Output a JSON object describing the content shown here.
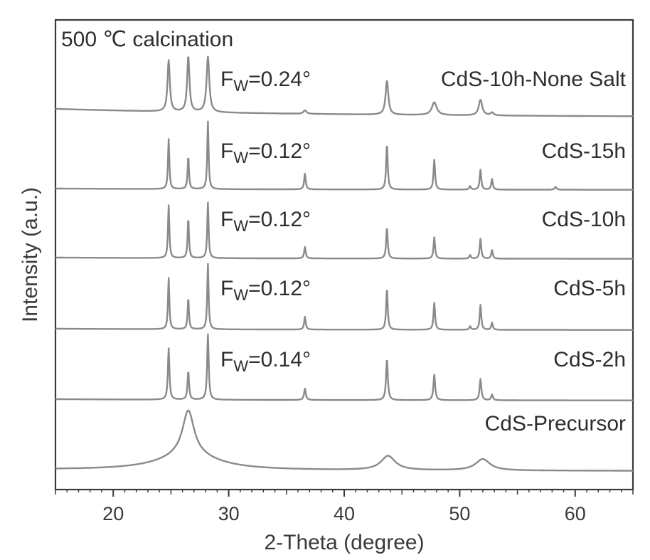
{
  "chart_data": {
    "type": "line",
    "title": "",
    "annotation": "500 ℃ calcination",
    "xlabel": "2-Theta (degree)",
    "ylabel": "Intensity (a.u.)",
    "xlim": [
      15,
      65
    ],
    "xticks": [
      20,
      30,
      40,
      50,
      60
    ],
    "yticks_shown": false,
    "series": [
      {
        "name": "CdS-10h-None Salt",
        "fw": "F_W=0.24°",
        "offset": 5,
        "baseline": 0.12,
        "peaks": [
          {
            "x": 24.8,
            "h": 0.72,
            "w": 0.12
          },
          {
            "x": 26.5,
            "h": 0.78,
            "w": 0.12
          },
          {
            "x": 28.2,
            "h": 0.78,
            "w": 0.14
          },
          {
            "x": 36.6,
            "h": 0.05,
            "w": 0.15
          },
          {
            "x": 43.7,
            "h": 0.48,
            "w": 0.14
          },
          {
            "x": 47.8,
            "h": 0.18,
            "w": 0.25
          },
          {
            "x": 51.8,
            "h": 0.22,
            "w": 0.18
          },
          {
            "x": 52.8,
            "h": 0.04,
            "w": 0.15
          }
        ]
      },
      {
        "name": "CdS-15h",
        "fw": "F_W=0.12°",
        "offset": 4,
        "baseline": 0.02,
        "peaks": [
          {
            "x": 24.8,
            "h": 0.7,
            "w": 0.07
          },
          {
            "x": 26.5,
            "h": 0.46,
            "w": 0.07
          },
          {
            "x": 28.2,
            "h": 0.95,
            "w": 0.07
          },
          {
            "x": 36.6,
            "h": 0.22,
            "w": 0.08
          },
          {
            "x": 43.7,
            "h": 0.64,
            "w": 0.08
          },
          {
            "x": 47.8,
            "h": 0.42,
            "w": 0.08
          },
          {
            "x": 50.9,
            "h": 0.05,
            "w": 0.08
          },
          {
            "x": 51.8,
            "h": 0.28,
            "w": 0.08
          },
          {
            "x": 52.8,
            "h": 0.15,
            "w": 0.08
          },
          {
            "x": 58.3,
            "h": 0.04,
            "w": 0.1
          }
        ]
      },
      {
        "name": "CdS-10h",
        "fw": "F_W=0.12°",
        "offset": 3,
        "baseline": 0.02,
        "peaks": [
          {
            "x": 24.8,
            "h": 0.74,
            "w": 0.07
          },
          {
            "x": 26.5,
            "h": 0.56,
            "w": 0.07
          },
          {
            "x": 28.2,
            "h": 0.78,
            "w": 0.07
          },
          {
            "x": 36.6,
            "h": 0.16,
            "w": 0.08
          },
          {
            "x": 43.7,
            "h": 0.44,
            "w": 0.08
          },
          {
            "x": 47.8,
            "h": 0.3,
            "w": 0.08
          },
          {
            "x": 50.9,
            "h": 0.05,
            "w": 0.08
          },
          {
            "x": 51.8,
            "h": 0.28,
            "w": 0.08
          },
          {
            "x": 52.8,
            "h": 0.12,
            "w": 0.08
          }
        ]
      },
      {
        "name": "CdS-5h",
        "fw": "F_W=0.12°",
        "offset": 2,
        "baseline": 0.02,
        "peaks": [
          {
            "x": 24.8,
            "h": 0.72,
            "w": 0.07
          },
          {
            "x": 26.5,
            "h": 0.44,
            "w": 0.07
          },
          {
            "x": 28.2,
            "h": 0.92,
            "w": 0.07
          },
          {
            "x": 36.6,
            "h": 0.18,
            "w": 0.08
          },
          {
            "x": 43.7,
            "h": 0.58,
            "w": 0.08
          },
          {
            "x": 47.8,
            "h": 0.38,
            "w": 0.08
          },
          {
            "x": 50.9,
            "h": 0.05,
            "w": 0.08
          },
          {
            "x": 51.8,
            "h": 0.35,
            "w": 0.08
          },
          {
            "x": 52.8,
            "h": 0.1,
            "w": 0.08
          }
        ]
      },
      {
        "name": "CdS-2h",
        "fw": "F_W=0.14°",
        "offset": 1,
        "baseline": 0.02,
        "peaks": [
          {
            "x": 24.8,
            "h": 0.72,
            "w": 0.08
          },
          {
            "x": 26.5,
            "h": 0.4,
            "w": 0.08
          },
          {
            "x": 28.2,
            "h": 0.92,
            "w": 0.08
          },
          {
            "x": 36.6,
            "h": 0.16,
            "w": 0.09
          },
          {
            "x": 43.7,
            "h": 0.58,
            "w": 0.09
          },
          {
            "x": 47.8,
            "h": 0.36,
            "w": 0.09
          },
          {
            "x": 51.8,
            "h": 0.3,
            "w": 0.09
          },
          {
            "x": 52.8,
            "h": 0.08,
            "w": 0.09
          }
        ]
      },
      {
        "name": "CdS-Precursor",
        "fw": "",
        "offset": 0,
        "baseline": 0.02,
        "peaks": [
          {
            "x": 26.5,
            "h": 0.62,
            "w": 0.6
          },
          {
            "x": 26.5,
            "h": 0.22,
            "w": 3.0
          },
          {
            "x": 43.8,
            "h": 0.2,
            "w": 0.75
          },
          {
            "x": 52.0,
            "h": 0.16,
            "w": 0.75
          }
        ]
      }
    ]
  }
}
